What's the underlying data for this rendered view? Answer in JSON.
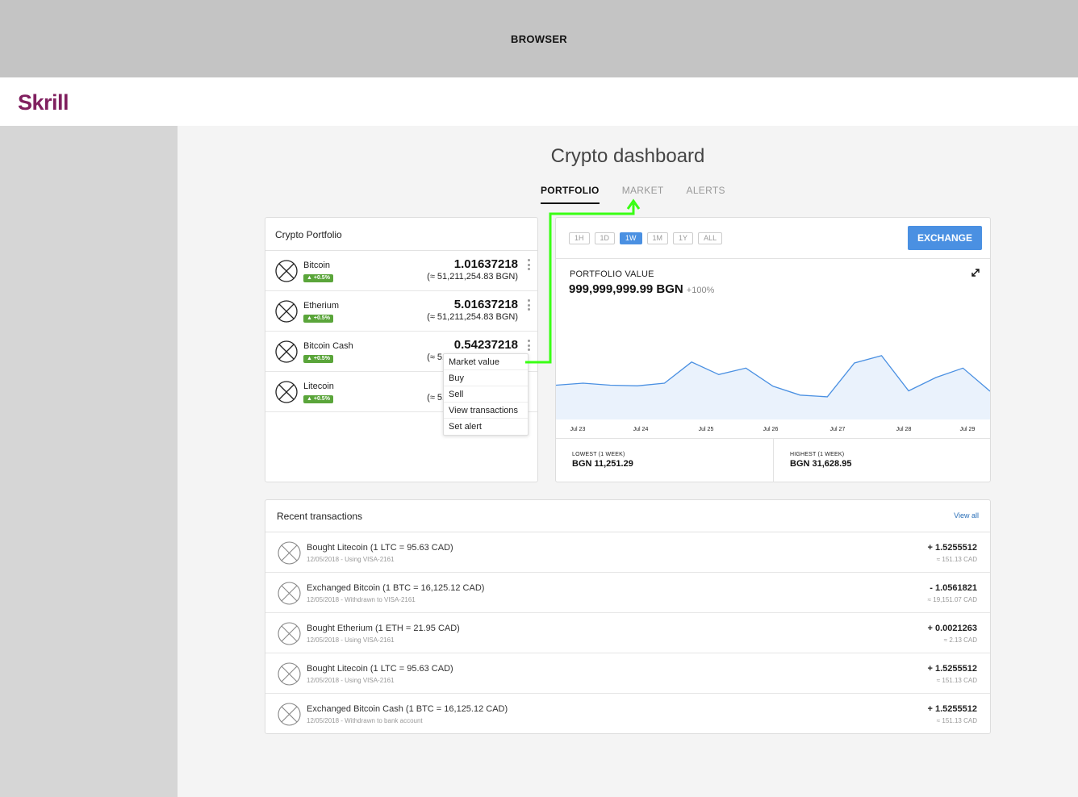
{
  "browser": {
    "label": "BROWSER"
  },
  "brand": {
    "logo_text": "Skrill",
    "logo_color": "#80205f"
  },
  "page": {
    "title": "Crypto dashboard"
  },
  "tabs": [
    {
      "label": "PORTFOLIO",
      "active": true
    },
    {
      "label": "MARKET",
      "active": false
    },
    {
      "label": "ALERTS",
      "active": false
    }
  ],
  "portfolio": {
    "title": "Crypto Portfolio",
    "coins": [
      {
        "name": "Bitcoin",
        "change": "+0.5%",
        "amount": "1.01637218",
        "fiat": "(≈ 51,211,254.83 BGN)",
        "icon": "placeholder-x-icon"
      },
      {
        "name": "Etherium",
        "change": "+0.5%",
        "amount": "5.01637218",
        "fiat": "(≈ 51,211,254.83 BGN)",
        "icon": "placeholder-x-icon"
      },
      {
        "name": "Bitcoin Cash",
        "change": "+0.5%",
        "amount": "0.54237218",
        "fiat": "(≈ 51,211,254.83 BGN)",
        "icon": "placeholder-x-icon"
      },
      {
        "name": "Litecoin",
        "change": "+0.5%",
        "amount": "",
        "fiat": "(≈ 51,211,254.83 BGN)",
        "icon": "placeholder-x-icon"
      }
    ],
    "context_menu": [
      "Market value",
      "Buy",
      "Sell",
      "View transactions",
      "Set alert"
    ]
  },
  "chart_panel": {
    "ranges": [
      {
        "label": "1H",
        "active": false
      },
      {
        "label": "1D",
        "active": false
      },
      {
        "label": "1W",
        "active": true
      },
      {
        "label": "1M",
        "active": false
      },
      {
        "label": "1Y",
        "active": false
      },
      {
        "label": "ALL",
        "active": false
      }
    ],
    "exchange_label": "EXCHANGE",
    "value_label": "PORTFOLIO VALUE",
    "value": "999,999,999.99 BGN",
    "value_change": "+100%",
    "lowest_label": "LOWEST (1 WEEK)",
    "lowest_value": "BGN 11,251.29",
    "highest_label": "HIGHEST (1 WEEK)",
    "highest_value": "BGN 31,628.95"
  },
  "chart_data": {
    "type": "area",
    "x_ticks": [
      "Jul 23",
      "Jul 24",
      "Jul 25",
      "Jul 26",
      "Jul 27",
      "Jul 28",
      "Jul 29"
    ],
    "x": [
      0,
      1,
      2,
      3,
      4,
      5,
      6,
      7,
      8,
      9,
      10,
      11,
      12,
      13,
      14,
      15,
      16
    ],
    "values": [
      17000,
      18000,
      17000,
      16700,
      18000,
      28500,
      22300,
      25500,
      16500,
      12100,
      11251.29,
      28000,
      31628.95,
      14200,
      20800,
      25500,
      14000
    ],
    "ylim": [
      0,
      40000
    ],
    "grid": false,
    "line_color": "#4a90e2",
    "fill_color": "#eaf2fc"
  },
  "transactions": {
    "title": "Recent transactions",
    "view_all_label": "View all",
    "rows": [
      {
        "title": "Bought Litecoin (1 LTC = 95.63 CAD)",
        "sub": "12/05/2018  -  Using VISA-2161",
        "amount": "+ 1.5255512",
        "fiat": "≈ 151.13 CAD"
      },
      {
        "title": "Exchanged Bitcoin (1 BTC = 16,125.12 CAD)",
        "sub": "12/05/2018  -  Withdrawn to VISA-2161",
        "amount": "- 1.0561821",
        "fiat": "≈ 19,151.07 CAD"
      },
      {
        "title": "Bought Etherium (1 ETH = 21.95 CAD)",
        "sub": "12/05/2018  -  Using VISA-2161",
        "amount": "+ 0.0021263",
        "fiat": "≈ 2.13 CAD"
      },
      {
        "title": "Bought Litecoin (1 LTC = 95.63 CAD)",
        "sub": "12/05/2018  -  Using VISA-2161",
        "amount": "+ 1.5255512",
        "fiat": "≈ 151.13 CAD"
      },
      {
        "title": "Exchanged Bitcoin Cash (1 BTC = 16,125.12 CAD)",
        "sub": "12/05/2018  -  Withdrawn to bank account",
        "amount": "+ 1.5255512",
        "fiat": "≈ 151.13 CAD"
      }
    ]
  },
  "colors": {
    "accent": "#4a90e2",
    "badge": "#5aa53a",
    "annotation": "#39ff14"
  }
}
